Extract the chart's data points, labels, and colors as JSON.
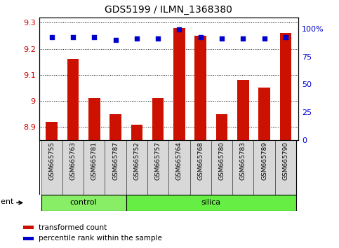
{
  "title": "GDS5199 / ILMN_1368380",
  "samples": [
    "GSM665755",
    "GSM665763",
    "GSM665781",
    "GSM665787",
    "GSM665752",
    "GSM665757",
    "GSM665764",
    "GSM665768",
    "GSM665780",
    "GSM665783",
    "GSM665789",
    "GSM665790"
  ],
  "transformed_count": [
    8.92,
    9.16,
    9.01,
    8.95,
    8.91,
    9.01,
    9.28,
    9.25,
    8.95,
    9.08,
    9.05,
    9.26
  ],
  "percentile_rank": [
    92,
    92,
    92,
    90,
    91,
    91,
    99,
    92,
    91,
    91,
    91,
    92
  ],
  "groups": [
    {
      "label": "control",
      "start": 0,
      "end": 4
    },
    {
      "label": "silica",
      "start": 4,
      "end": 12
    }
  ],
  "ylim_left": [
    8.85,
    9.32
  ],
  "yticks_left": [
    8.9,
    9.0,
    9.1,
    9.2,
    9.3
  ],
  "ytick_labels_left": [
    "8.9",
    "9",
    "9.1",
    "9.2",
    "9.3"
  ],
  "ylim_right": [
    0,
    110
  ],
  "yticks_right": [
    0,
    25,
    50,
    75,
    100
  ],
  "ytick_labels_right": [
    "0",
    "25",
    "50",
    "75",
    "100%"
  ],
  "bar_color": "#cc1100",
  "dot_color": "#0000cc",
  "bar_bottom": 8.85,
  "bar_width": 0.55,
  "group_colors": [
    "#88ee66",
    "#88ee66"
  ],
  "agent_label": "agent",
  "legend_items": [
    {
      "label": "transformed count",
      "color": "#cc1100"
    },
    {
      "label": "percentile rank within the sample",
      "color": "#0000cc"
    }
  ],
  "tick_label_color_left": "#cc0000",
  "tick_label_color_right": "#0000cc",
  "sample_bg_color": "#d8d8d8"
}
